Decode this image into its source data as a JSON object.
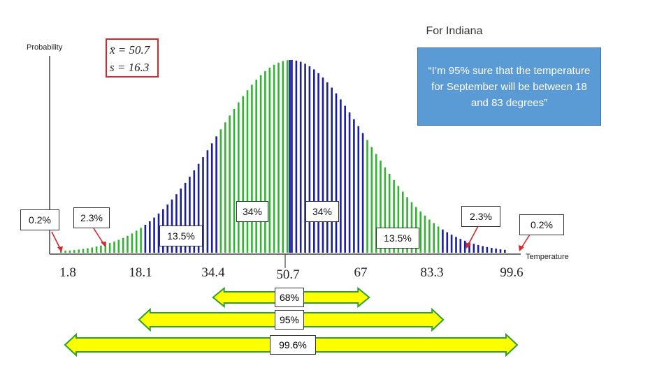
{
  "chart_data": {
    "type": "bar",
    "title": "For Indiana",
    "ylabel": "Probability",
    "xlabel": "Temperature",
    "mean": 50.7,
    "sd": 16.3,
    "stats": {
      "mean_label": "x̄ = 50.7",
      "sd_label": "s = 16.3"
    },
    "xlim": [
      1.8,
      99.6
    ],
    "ticks": [
      "1.8",
      "18.1",
      "34.4",
      "50.7",
      "67",
      "83.3",
      "99.6"
    ],
    "tick_values": [
      1.8,
      18.1,
      34.4,
      50.7,
      67,
      83.3,
      99.6
    ],
    "bands": [
      {
        "from": 1.8,
        "to": 18.1,
        "percent": "2.3%",
        "color": "#2fb52f"
      },
      {
        "from": 18.1,
        "to": 34.4,
        "percent": "13.5%",
        "color": "#1c1f9c"
      },
      {
        "from": 34.4,
        "to": 50.7,
        "percent": "34%",
        "color": "#2fb52f"
      },
      {
        "from": 50.7,
        "to": 67,
        "percent": "34%",
        "color": "#1c1f9c"
      },
      {
        "from": 67,
        "to": 83.3,
        "percent": "13.5%",
        "color": "#2fb52f"
      },
      {
        "from": 83.3,
        "to": 99.6,
        "percent": "2.3%",
        "color": "#1c1f9c"
      }
    ],
    "tails": [
      {
        "side": "left",
        "percent": "0.2%"
      },
      {
        "side": "right",
        "percent": "0.2%"
      }
    ],
    "ranges": [
      {
        "label": "68%",
        "from": 34.4,
        "to": 67
      },
      {
        "label": "95%",
        "from": 18.1,
        "to": 83.3
      },
      {
        "label": "99.6%",
        "from": 1.8,
        "to": 99.6
      }
    ]
  },
  "callout": {
    "text": "“I’m 95% sure that the temperature for September will be between 18 and 83 degrees”"
  },
  "colors": {
    "green": "#2fb52f",
    "blue": "#1c1f9c",
    "arrow_fill": "#ffff00",
    "arrow_stroke": "#2e9e2e",
    "callout_bg": "#5b9bd5",
    "stat_border": "#d9262b"
  }
}
